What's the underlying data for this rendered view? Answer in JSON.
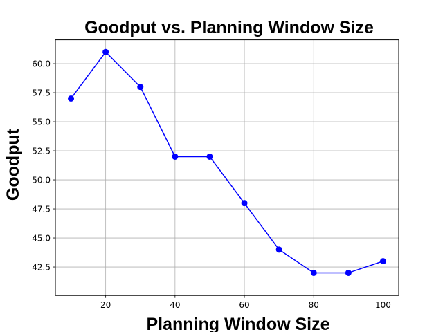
{
  "chart_data": {
    "type": "line",
    "title": "Goodput vs. Planning Window Size",
    "xlabel": "Planning Window Size",
    "ylabel": "Goodput",
    "x": [
      10,
      20,
      30,
      40,
      50,
      60,
      70,
      80,
      90,
      100
    ],
    "series": [
      {
        "values": [
          57,
          61,
          58,
          52,
          52,
          48,
          44,
          42,
          42,
          43
        ],
        "color": "#0000ff",
        "marker": "circle"
      }
    ],
    "xlim": [
      5.5,
      104.5
    ],
    "ylim": [
      40.05,
      62.05
    ],
    "xticks": [
      "20",
      "40",
      "60",
      "80",
      "100"
    ],
    "xtick_values": [
      20,
      40,
      60,
      80,
      100
    ],
    "yticks": [
      "42.5",
      "45.0",
      "47.5",
      "50.0",
      "52.5",
      "55.0",
      "57.5",
      "60.0"
    ],
    "ytick_values": [
      42.5,
      45.0,
      47.5,
      50.0,
      52.5,
      55.0,
      57.5,
      60.0
    ],
    "grid": true,
    "colors": {
      "line": "#0000ff",
      "grid": "#b0b0b0",
      "axes": "#000000"
    }
  }
}
